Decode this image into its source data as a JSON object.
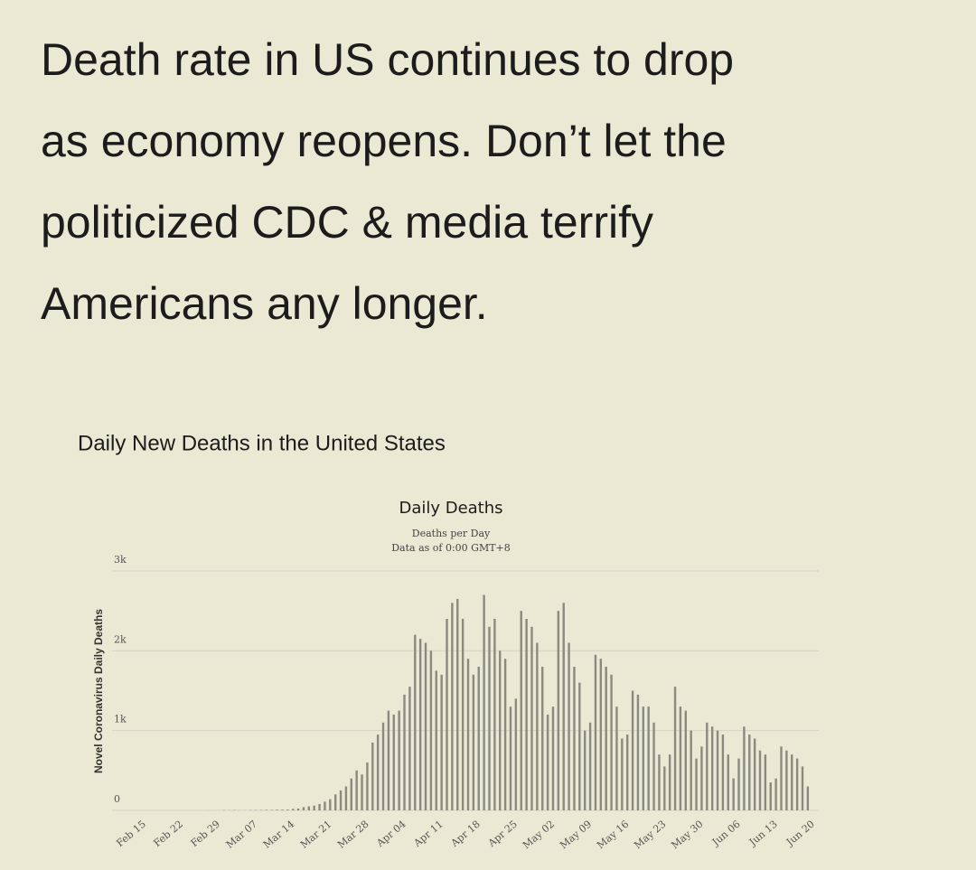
{
  "post": {
    "lines": [
      "Death rate in US continues to drop",
      "as economy reopens. Don’t let the",
      "politicized CDC & media terrify",
      "Americans any longer."
    ]
  },
  "chart_data": {
    "type": "bar",
    "heading": "Daily New Deaths in the United States",
    "title": "Daily Deaths",
    "subtitle": "Deaths per Day",
    "note": "Data as of 0:00 GMT+8",
    "y_label": "Novel Coronavirus Daily Deaths",
    "color": "#8a8a80",
    "grid": true,
    "ylim": [
      0,
      3000
    ],
    "yticks": [
      0,
      {
        "value": 1000,
        "label": "1k"
      },
      {
        "value": 2000,
        "label": "2k"
      },
      {
        "value": 3000,
        "label": "3k"
      }
    ],
    "categories": [
      "Feb 15",
      null,
      null,
      null,
      null,
      null,
      null,
      "Feb 22",
      null,
      null,
      null,
      null,
      null,
      null,
      "Feb 29",
      null,
      null,
      null,
      null,
      null,
      null,
      "Mar 07",
      null,
      null,
      null,
      null,
      null,
      null,
      "Mar 14",
      null,
      null,
      null,
      null,
      null,
      null,
      "Mar 21",
      null,
      null,
      null,
      null,
      null,
      null,
      "Mar 28",
      null,
      null,
      null,
      null,
      null,
      null,
      "Apr 04",
      null,
      null,
      null,
      null,
      null,
      null,
      "Apr 11",
      null,
      null,
      null,
      null,
      null,
      null,
      "Apr 18",
      null,
      null,
      null,
      null,
      null,
      null,
      "Apr 25",
      null,
      null,
      null,
      null,
      null,
      null,
      "May 02",
      null,
      null,
      null,
      null,
      null,
      null,
      "May 09",
      null,
      null,
      null,
      null,
      null,
      null,
      "May 16",
      null,
      null,
      null,
      null,
      null,
      null,
      "May 23",
      null,
      null,
      null,
      null,
      null,
      null,
      "May 30",
      null,
      null,
      null,
      null,
      null,
      null,
      "Jun 06",
      null,
      null,
      null,
      null,
      null,
      null,
      "Jun 13",
      null,
      null,
      null,
      null,
      null,
      null,
      "Jun 20",
      null
    ],
    "values": [
      0,
      0,
      0,
      0,
      0,
      0,
      0,
      0,
      0,
      0,
      0,
      0,
      0,
      0,
      1,
      0,
      1,
      3,
      2,
      4,
      1,
      2,
      3,
      4,
      4,
      7,
      6,
      9,
      9,
      10,
      18,
      23,
      40,
      50,
      60,
      80,
      110,
      140,
      200,
      250,
      300,
      400,
      500,
      450,
      600,
      850,
      950,
      1100,
      1250,
      1200,
      1250,
      1450,
      1550,
      2200,
      2150,
      2100,
      2000,
      1750,
      1700,
      2400,
      2600,
      2650,
      2400,
      1900,
      1700,
      1800,
      2700,
      2300,
      2400,
      2000,
      1900,
      1300,
      1400,
      2500,
      2400,
      2300,
      2100,
      1800,
      1200,
      1300,
      2500,
      2600,
      2100,
      1800,
      1600,
      1000,
      1100,
      1950,
      1900,
      1800,
      1700,
      1300,
      900,
      950,
      1500,
      1450,
      1300,
      1300,
      1100,
      700,
      550,
      700,
      1550,
      1300,
      1250,
      1000,
      650,
      800,
      1100,
      1050,
      1000,
      950,
      700,
      400,
      650,
      1050,
      950,
      900,
      750,
      700,
      350,
      400,
      800,
      750,
      700,
      650,
      550,
      300
    ]
  }
}
